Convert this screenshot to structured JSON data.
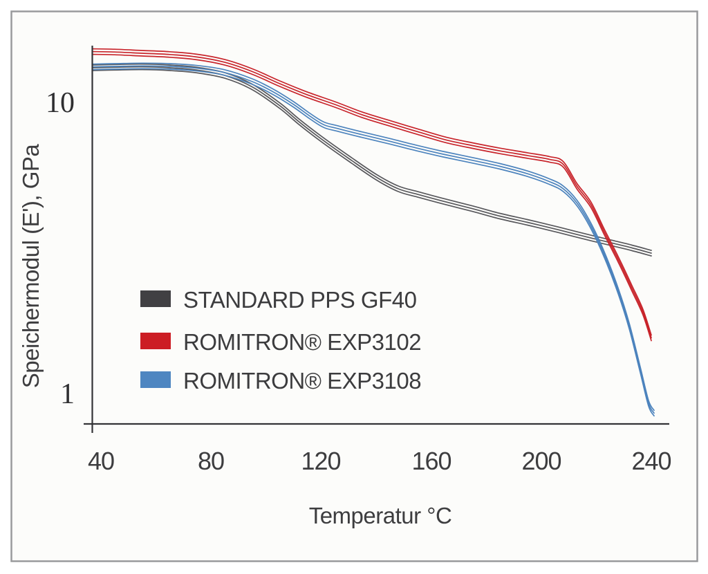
{
  "chart_data": {
    "type": "line",
    "title": "",
    "xlabel": "Temperatur °C",
    "ylabel": "Speichermodul (E'), GPa",
    "x_ticks": [
      "40",
      "80",
      "120",
      "160",
      "200",
      "240"
    ],
    "y_ticks": [
      "10",
      "1"
    ],
    "x_axis_range": [
      37,
      247
    ],
    "y_scale": "log",
    "y_axis_range": [
      0.78,
      16.5
    ],
    "grid": false,
    "legend_position": "inside-lower-left",
    "series": [
      {
        "name": "STANDARD PPS GF40",
        "swatch_color": "#414043",
        "line_color": "#58585c",
        "points": [
          [
            37,
            13.4
          ],
          [
            45,
            13.45
          ],
          [
            55,
            13.5
          ],
          [
            65,
            13.4
          ],
          [
            75,
            13.15
          ],
          [
            85,
            12.6
          ],
          [
            95,
            11.5
          ],
          [
            105,
            9.9
          ],
          [
            112,
            8.7
          ],
          [
            120,
            7.6
          ],
          [
            130,
            6.5
          ],
          [
            140,
            5.6
          ],
          [
            148,
            5.1
          ],
          [
            155,
            4.88
          ],
          [
            165,
            4.6
          ],
          [
            175,
            4.35
          ],
          [
            185,
            4.1
          ],
          [
            195,
            3.9
          ],
          [
            205,
            3.7
          ],
          [
            215,
            3.5
          ],
          [
            225,
            3.32
          ],
          [
            233,
            3.18
          ],
          [
            240,
            3.05
          ]
        ]
      },
      {
        "name": "ROMITRON® EXP3102",
        "swatch_color": "#cc1d24",
        "line_color": "#c8242b",
        "points": [
          [
            37,
            15.25
          ],
          [
            45,
            15.2
          ],
          [
            55,
            15.05
          ],
          [
            65,
            14.9
          ],
          [
            75,
            14.6
          ],
          [
            85,
            14.0
          ],
          [
            95,
            13.0
          ],
          [
            105,
            11.8
          ],
          [
            115,
            10.8
          ],
          [
            125,
            10.0
          ],
          [
            135,
            9.2
          ],
          [
            145,
            8.6
          ],
          [
            155,
            8.05
          ],
          [
            165,
            7.55
          ],
          [
            175,
            7.2
          ],
          [
            185,
            6.9
          ],
          [
            195,
            6.65
          ],
          [
            203,
            6.45
          ],
          [
            208,
            6.2
          ],
          [
            213,
            5.2
          ],
          [
            218,
            4.5
          ],
          [
            223,
            3.6
          ],
          [
            228,
            2.9
          ],
          [
            233,
            2.3
          ],
          [
            237,
            1.9
          ],
          [
            240,
            1.55
          ]
        ]
      },
      {
        "name": "ROMITRON® EXP3108",
        "swatch_color": "#4e86c1",
        "line_color": "#4c83bd",
        "points": [
          [
            37,
            13.5
          ],
          [
            45,
            13.55
          ],
          [
            55,
            13.6
          ],
          [
            65,
            13.55
          ],
          [
            75,
            13.35
          ],
          [
            85,
            12.9
          ],
          [
            95,
            12.0
          ],
          [
            103,
            11.0
          ],
          [
            110,
            10.0
          ],
          [
            116,
            9.1
          ],
          [
            121,
            8.5
          ],
          [
            126,
            8.25
          ],
          [
            135,
            7.85
          ],
          [
            145,
            7.45
          ],
          [
            155,
            7.05
          ],
          [
            165,
            6.7
          ],
          [
            175,
            6.4
          ],
          [
            185,
            6.1
          ],
          [
            195,
            5.75
          ],
          [
            203,
            5.4
          ],
          [
            208,
            5.1
          ],
          [
            213,
            4.55
          ],
          [
            218,
            3.8
          ],
          [
            223,
            3.0
          ],
          [
            228,
            2.25
          ],
          [
            232,
            1.7
          ],
          [
            236,
            1.2
          ],
          [
            239,
            0.92
          ],
          [
            241,
            0.85
          ]
        ]
      }
    ]
  }
}
